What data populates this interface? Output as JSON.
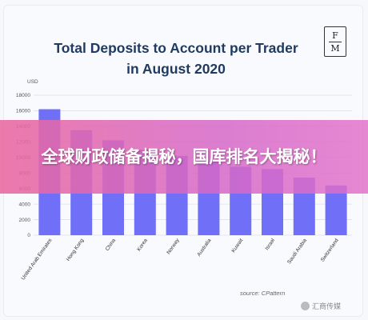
{
  "banner": {
    "text": "全球财政储备揭秘，国库排名大揭秘！"
  },
  "logo": {
    "top": "F",
    "bottom": "M"
  },
  "source": "source: CPattern",
  "watermark": "汇商传媒",
  "colors": {
    "bar": "#6f6ff8",
    "banner": "#e46aa8",
    "title": "#1f3b61"
  },
  "chart_data": {
    "type": "bar",
    "title": "Total Deposits to Account per Trader in August 2020",
    "unit_label": "USD",
    "ylim": [
      0,
      18000
    ],
    "yticks": [
      0,
      2000,
      4000,
      6000,
      8000,
      10000,
      12000,
      14000,
      16000,
      18000
    ],
    "grid": true,
    "categories": [
      "United Arab Emirates",
      "Hong Kong",
      "China",
      "Korea",
      "Norway",
      "Australia",
      "Kuwait",
      "Israel",
      "Saudi Arabia",
      "Switzerland"
    ],
    "values": [
      16200,
      13500,
      12200,
      11000,
      10200,
      9500,
      8800,
      8500,
      7400,
      6400
    ]
  }
}
